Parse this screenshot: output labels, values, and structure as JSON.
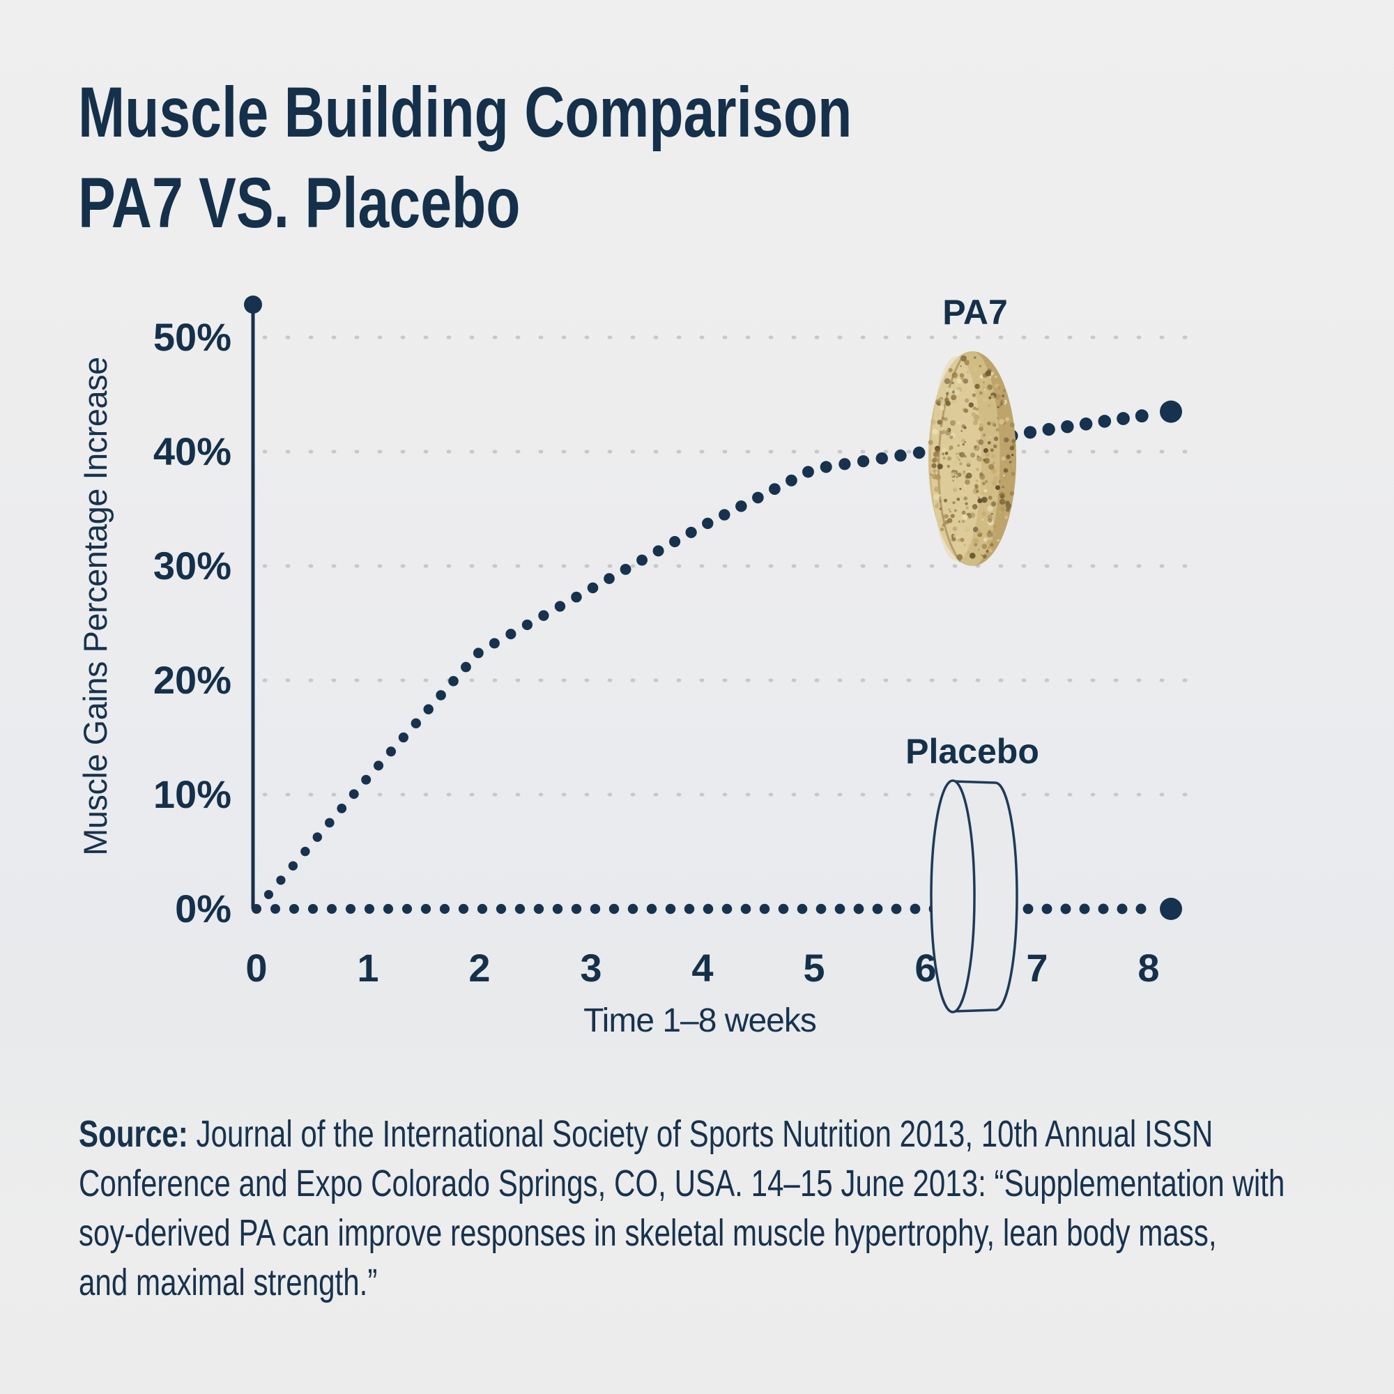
{
  "page": {
    "background": "#ededee",
    "accent_navy": "#16324e"
  },
  "title": {
    "line1": "Muscle Building Comparison",
    "line2": "PA7 VS. Placebo"
  },
  "chart_data": {
    "type": "line",
    "title": "Muscle Building Comparison PA7 VS. Placebo",
    "xlabel": "Time 1–8 weeks",
    "ylabel": "Muscle Gains Percentage Increase",
    "xlim": [
      0,
      8.3
    ],
    "ylim": [
      0,
      53
    ],
    "grid": "dotted horizontal gridlines at each 10%",
    "legend_position": "inline labels above pill illustrations",
    "x_ticks": [
      0,
      1,
      2,
      3,
      4,
      5,
      6,
      7,
      8
    ],
    "y_ticks": [
      {
        "label": "0%",
        "value": 0
      },
      {
        "label": "10%",
        "value": 10
      },
      {
        "label": "20%",
        "value": 20
      },
      {
        "label": "30%",
        "value": 30
      },
      {
        "label": "40%",
        "value": 40
      },
      {
        "label": "50%",
        "value": 50
      }
    ],
    "series": [
      {
        "name": "PA7",
        "style": "navy dotted curve with large end dot",
        "x": [
          0,
          1,
          2,
          3,
          4,
          5,
          6,
          7,
          8.2
        ],
        "values": [
          0,
          11.5,
          22.5,
          28,
          33.5,
          38.5,
          40,
          41.8,
          43.5
        ]
      },
      {
        "name": "Placebo",
        "style": "navy dotted flat line with large end dot",
        "x": [
          0,
          8.2
        ],
        "values": [
          0,
          0
        ]
      }
    ],
    "colors": {
      "line": "#16324e",
      "grid_dot": "#c7c8ca",
      "tick_text": "#14304b"
    }
  },
  "labels": {
    "pa7": "PA7",
    "placebo": "Placebo"
  },
  "pa7_pill": {
    "base": "#d2bc85",
    "highlight": "#e6d8ab",
    "rim": "#b59a60",
    "speckles": [
      "#7c6436",
      "#94793f",
      "#a98e55",
      "#c3aa72",
      "#e9ddb2",
      "#63512e",
      "#d7c48d",
      "#8d7547"
    ]
  },
  "placebo_pill": {
    "outline": "#1d3b59",
    "fill": "#e9eaec"
  },
  "source": {
    "label": "Source:",
    "line1": "Journal of the International Society of Sports Nutrition 2013, 10th Annual ISSN",
    "line2": "Conference and Expo Colorado Springs, CO, USA. 14–15 June 2013: “Supplementation with",
    "line3": "soy-derived PA can improve responses in skeletal muscle hypertrophy, lean body mass,",
    "line4": "and maximal strength.”"
  }
}
